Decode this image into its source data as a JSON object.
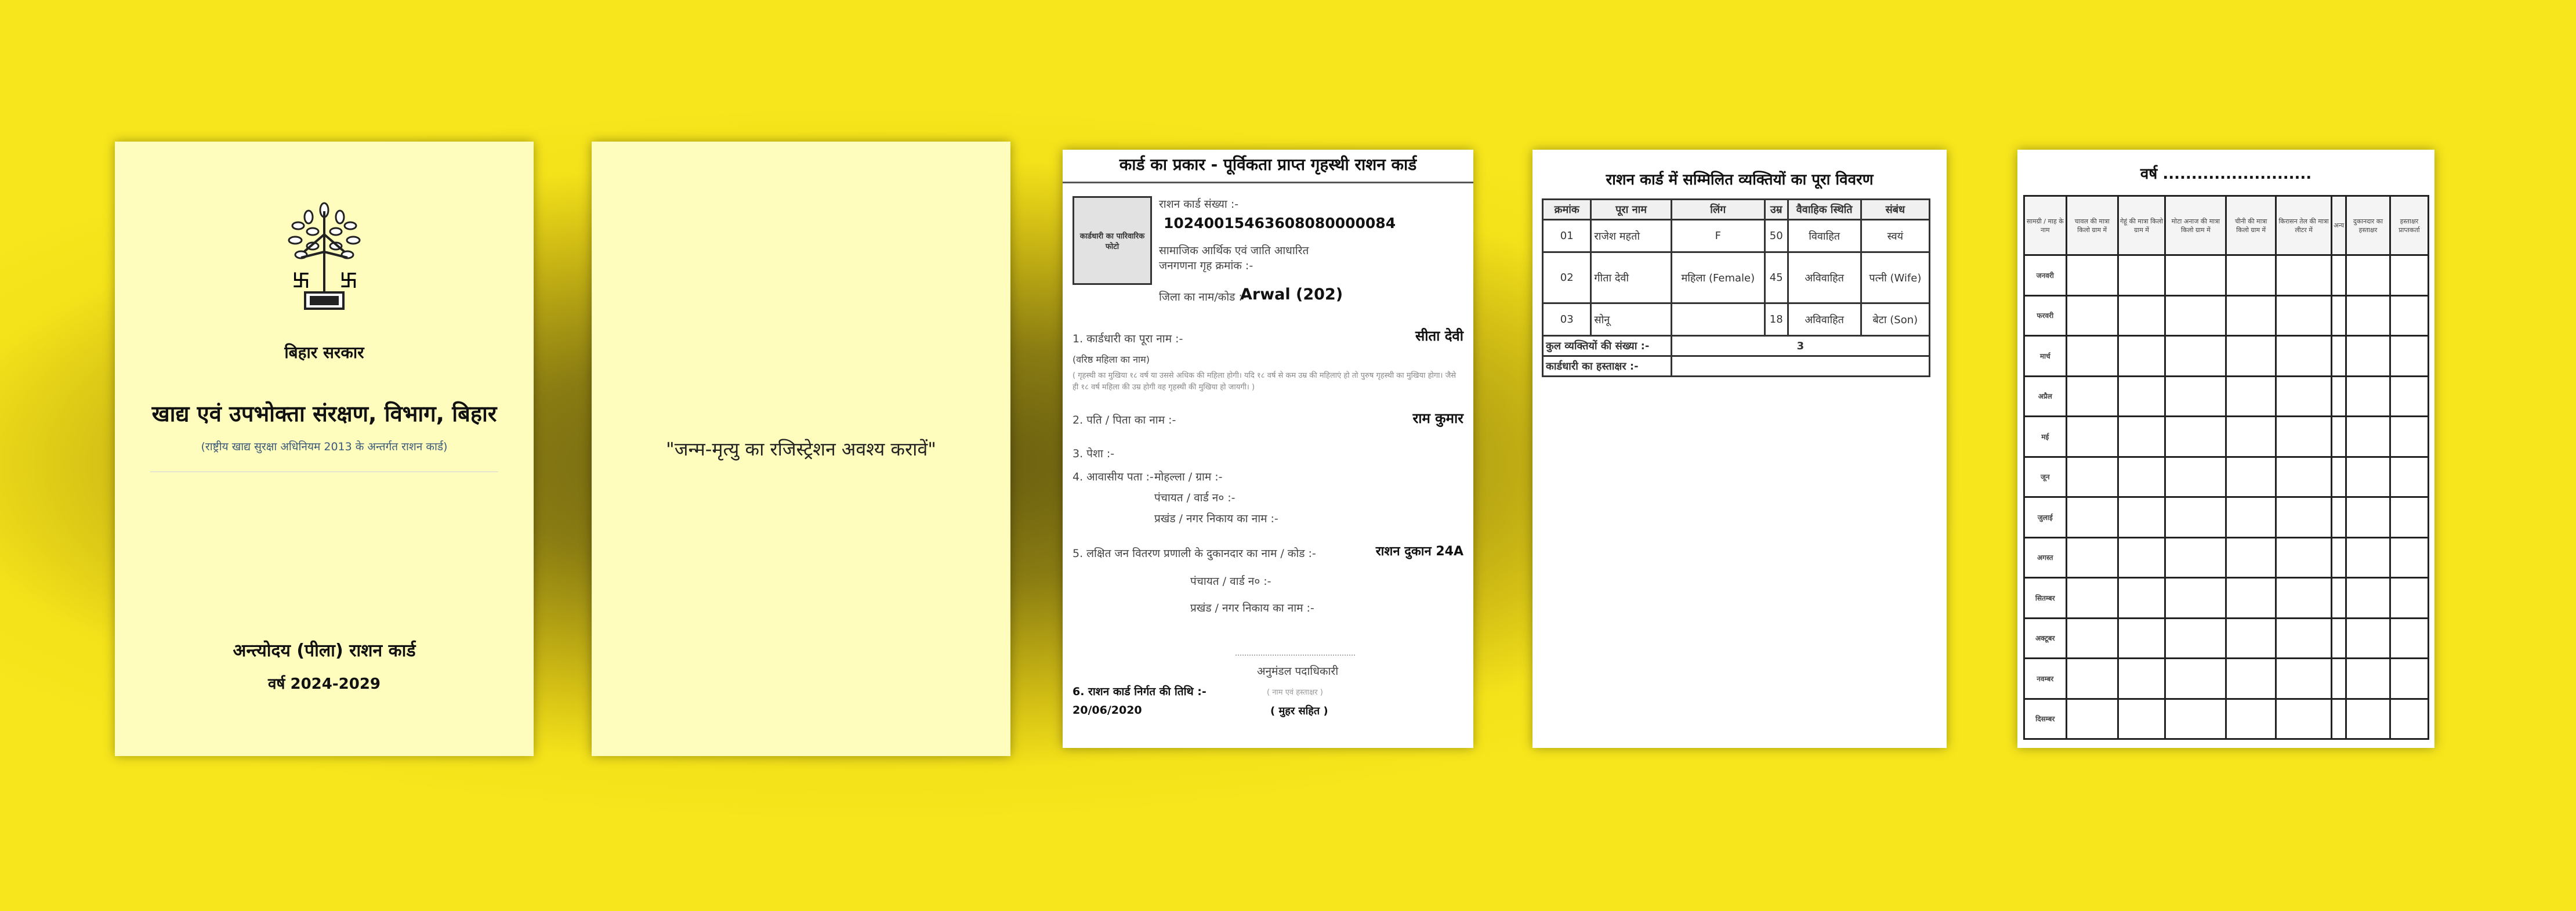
{
  "background": {
    "colors": [
      "#f7e61c",
      "#5e5410"
    ]
  },
  "cover": {
    "emblem": "bihar-bodhi-tree-emblem",
    "government": "बिहार सरकार",
    "department": "खाद्य एवं उपभोक्ता संरक्षण, विभाग, बिहार",
    "act": "(राष्ट्रीय खाद्य सुरक्षा अधिनियम 2013 के अन्तर्गत राशन कार्ड)",
    "card_type": "अन्त्योदय (पीला) राशन कार्ड",
    "years": "वर्ष 2024-2029",
    "bg_color": "#fefdbe"
  },
  "notice": {
    "text": "\"जन्म-मृत्यु का रजिस्ट्रेशन अवश्य करावें\""
  },
  "details": {
    "header": "कार्ड का प्रकार - पूर्विकता प्राप्त गृहस्थी राशन कार्ड",
    "photo_label": "कार्डधारी का पारिवारिक फोटो",
    "card_no_label": "राशन कार्ड संख्या :-",
    "card_no": "10240015463608080000084",
    "secc_label": "सामाजिक आर्थिक एवं जाति आधारित जनगणना गृह क्रमांक :-",
    "district_label": "जिला का नाम/कोड :-",
    "district": "Arwal (202)",
    "holder_label": "1. कार्डधारी का पूरा नाम :-",
    "holder": "सीता देवी",
    "holder_sub": "(वरिष्ठ महिला का नाम)",
    "holder_note": "( गृहस्थी का मुखिया १८ वर्ष या उससे अधिक की महिला होगी। यदि १८ वर्ष से कम उम्र की महिलाएं हो तो पुरुष गृहस्थी का मुखिया होगा। जैसे ही १८ वर्ष महिला की उम्र होगी वह गृहस्थी की मुखिया हो जायगी। )",
    "father_label": "2. पति / पिता का नाम :-",
    "father": "राम कुमार",
    "occupation_label": "3. पेशा :-",
    "address_label": "4. आवासीय पता :-",
    "addr1": "मोहल्ला / ग्राम :-",
    "addr2": "पंचायत / वार्ड न० :-",
    "addr3": "प्रखंड / नगर निकाय का नाम :-",
    "dealer_label": "5. लक्षित जन वितरण प्रणाली के दुकानदार का नाम / कोड :-",
    "dealer": "राशन दुकान 24A",
    "dealer_addr1": "पंचायत / वार्ड न० :-",
    "dealer_addr2": "प्रखंड / नगर निकाय का नाम :-",
    "officer": "अनुमंडल पदाधिकारी",
    "officer_sub": "( नाम एवं हस्ताक्षर )",
    "seal": "( मुहर सहित )",
    "issue_label": "6. राशन कार्ड निर्गत की तिथि :-",
    "issue_date": "20/06/2020"
  },
  "members": {
    "title": "राशन कार्ड में सम्मिलित व्यक्तियों का पूरा विवरण",
    "headers": [
      "क्रमांक",
      "पूरा नाम",
      "लिंग",
      "उम्र",
      "वैवाहिक स्थिति",
      "संबंध"
    ],
    "rows": [
      [
        "01",
        "राजेश महतो",
        "F",
        "50",
        "विवाहित",
        "स्वयं"
      ],
      [
        "02",
        "गीता देवी",
        "महिला (Female)",
        "45",
        "अविवाहित",
        "पत्नी (Wife)"
      ],
      [
        "03",
        "सोनू",
        "",
        "18",
        "अविवाहित",
        "बेटा (Son)"
      ]
    ],
    "total_label": "कुल व्यक्तियों की संख्या :-",
    "total": "3",
    "signature_label": "कार्डधारी का हस्ताक्षर :-"
  },
  "distribution": {
    "title": "वर्ष ..........................",
    "headers": [
      "सामग्री / माह के नाम",
      "चावल की मात्रा किलो ग्राम में",
      "गेहूं की मात्रा किलो ग्राम में",
      "मोटा अनाज की मात्रा किलो ग्राम में",
      "चीनी की मात्रा किलो ग्राम में",
      "किरासन तेल की मात्रा लीटर में",
      "अन्य",
      "दुकानदार का हस्ताक्षर",
      "हस्ताक्षर प्राप्तकर्ता"
    ],
    "months": [
      "जनवरी",
      "फरवरी",
      "मार्च",
      "अप्रैल",
      "मई",
      "जून",
      "जुलाई",
      "अगस्त",
      "सितम्बर",
      "अक्टूबर",
      "नवम्बर",
      "दिसम्बर"
    ]
  }
}
